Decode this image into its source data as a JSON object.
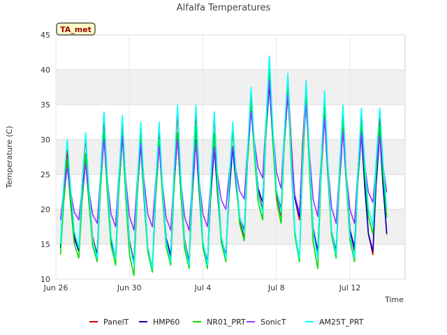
{
  "chart_data": {
    "type": "line",
    "title": "Alfalfa Temperatures",
    "xlabel": "Time",
    "ylabel": "Temperature (C)",
    "badge": "TA_met",
    "ylim": [
      10,
      45
    ],
    "xlim": [
      "2023-06-26",
      "2023-07-15"
    ],
    "yticks": [
      10,
      15,
      20,
      25,
      30,
      35,
      40,
      45
    ],
    "xticks": [
      {
        "label": "Jun 26",
        "date": "2023-06-26"
      },
      {
        "label": "Jun 30",
        "date": "2023-06-30"
      },
      {
        "label": "Jul 4",
        "date": "2023-07-04"
      },
      {
        "label": "Jul 8",
        "date": "2023-07-08"
      },
      {
        "label": "Jul 12",
        "date": "2023-07-12"
      }
    ],
    "legend_position": "bottom",
    "grid": true,
    "daily": {
      "days": [
        "2023-06-26",
        "2023-06-27",
        "2023-06-28",
        "2023-06-29",
        "2023-06-30",
        "2023-07-01",
        "2023-07-02",
        "2023-07-03",
        "2023-07-04",
        "2023-07-05",
        "2023-07-06",
        "2023-07-07",
        "2023-07-08",
        "2023-07-09",
        "2023-07-10",
        "2023-07-11",
        "2023-07-12",
        "2023-07-13"
      ],
      "series": [
        {
          "name": "PanelT",
          "color": "#cc0000",
          "min": [
            14.5,
            14.0,
            13.5,
            13.0,
            12.5,
            11.5,
            13.0,
            12.5,
            12.0,
            13.0,
            16.0,
            20.0,
            19.0,
            18.5,
            13.0,
            13.5,
            14.0,
            13.5
          ],
          "max": [
            28.5,
            30.5,
            33.0,
            33.0,
            32.0,
            31.5,
            34.0,
            34.0,
            33.5,
            32.0,
            37.0,
            40.5,
            39.0,
            38.0,
            36.0,
            34.0,
            33.5,
            33.0
          ]
        },
        {
          "name": "HMP60",
          "color": "#0000cc",
          "min": [
            14.5,
            14.0,
            13.5,
            13.0,
            12.5,
            11.5,
            13.5,
            12.5,
            12.5,
            13.5,
            17.0,
            21.0,
            20.0,
            19.0,
            14.0,
            14.0,
            14.5,
            14.0
          ],
          "max": [
            26.5,
            27.0,
            30.5,
            30.5,
            29.5,
            29.5,
            30.5,
            30.0,
            29.0,
            29.0,
            34.5,
            38.0,
            36.5,
            35.5,
            33.5,
            31.5,
            31.0,
            31.0
          ]
        },
        {
          "name": "NR01_PRT",
          "color": "#00dd00",
          "min": [
            13.5,
            13.0,
            12.5,
            12.0,
            10.5,
            11.0,
            12.0,
            11.5,
            11.5,
            12.5,
            15.5,
            18.5,
            18.0,
            12.5,
            11.5,
            13.0,
            12.5,
            16.5
          ],
          "max": [
            27.0,
            28.0,
            31.0,
            31.0,
            30.5,
            30.0,
            31.0,
            32.0,
            31.0,
            31.5,
            35.5,
            40.0,
            38.0,
            36.5,
            35.0,
            33.0,
            32.5,
            32.0
          ]
        },
        {
          "name": "SonicT",
          "color": "#9933ff",
          "min": [
            18.5,
            18.5,
            18.0,
            17.5,
            17.0,
            17.5,
            17.0,
            17.0,
            17.5,
            20.0,
            21.5,
            24.5,
            23.0,
            19.5,
            19.0,
            18.0,
            18.0,
            21.0
          ],
          "max": [
            26.0,
            26.5,
            30.0,
            30.5,
            29.5,
            29.0,
            30.0,
            29.5,
            29.0,
            29.0,
            34.0,
            38.5,
            36.5,
            35.0,
            33.0,
            31.0,
            31.0,
            30.5
          ]
        },
        {
          "name": "AM25T_PRT",
          "color": "#00ffff",
          "min": [
            15.0,
            14.5,
            13.0,
            13.0,
            12.0,
            11.5,
            12.5,
            12.0,
            12.0,
            13.0,
            16.5,
            19.5,
            19.5,
            13.0,
            13.0,
            13.5,
            13.0,
            17.5
          ],
          "max": [
            30.0,
            31.0,
            34.0,
            33.5,
            32.5,
            32.5,
            35.0,
            35.0,
            34.0,
            32.5,
            37.5,
            42.0,
            39.5,
            38.5,
            37.0,
            35.0,
            34.5,
            34.5
          ]
        }
      ]
    }
  }
}
